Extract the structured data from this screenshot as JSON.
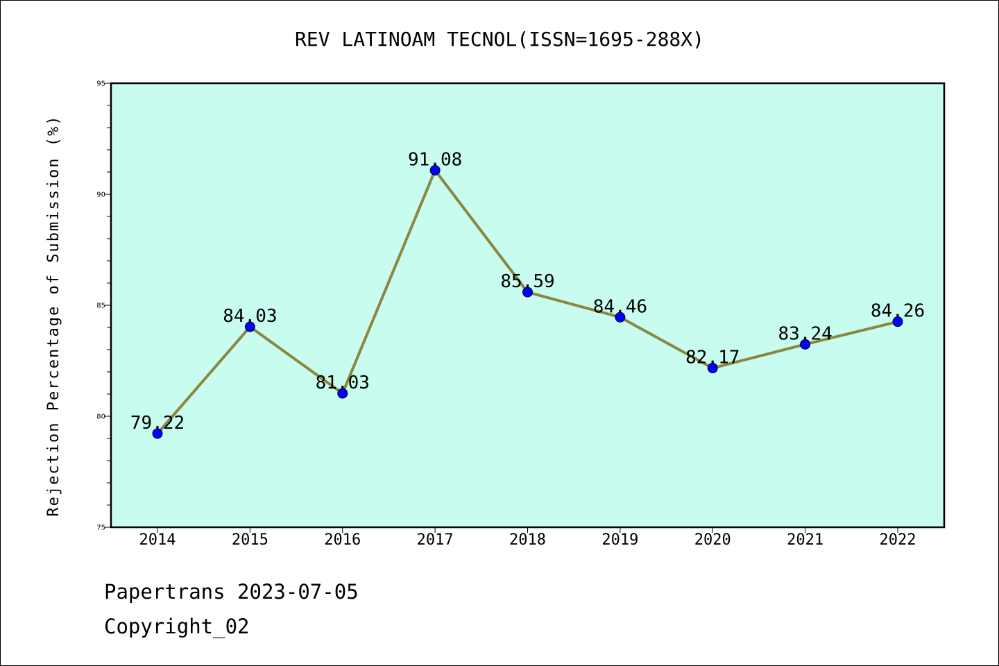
{
  "chart_data": {
    "type": "line",
    "title": "REV LATINOAM TECNOL(ISSN=1695-288X)",
    "xlabel": "",
    "ylabel": "Rejection Percentage of Submission (%)",
    "categories": [
      "2014",
      "2015",
      "2016",
      "2017",
      "2018",
      "2019",
      "2020",
      "2021",
      "2022"
    ],
    "series": [
      {
        "values": [
          79.22,
          84.03,
          81.03,
          91.08,
          85.59,
          84.46,
          82.17,
          83.24,
          84.26
        ],
        "data_labels": [
          "79.22",
          "84.03",
          "81.03",
          "91.08",
          "85.59",
          "84.46",
          "82.17",
          "83.24",
          "84.26"
        ],
        "line_color": "#8b8640",
        "marker_color": "#0000ff"
      }
    ],
    "ylim": [
      75,
      95
    ],
    "yticks": [
      75,
      80,
      85,
      90,
      95
    ],
    "ytick_labels": [
      "75",
      "80",
      "85",
      "90",
      "95"
    ],
    "grid": false,
    "plot_background": "#c8fcee"
  },
  "footer": {
    "line1": "Papertrans 2023-07-05",
    "line2": "Copyright_02"
  }
}
